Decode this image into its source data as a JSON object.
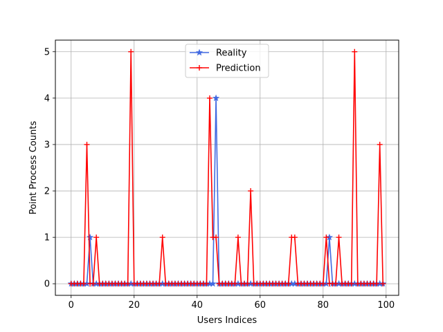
{
  "chart_data": {
    "type": "line",
    "xlabel": "Users Indices",
    "ylabel": "Point Process Counts",
    "xlim": [
      -5,
      104
    ],
    "ylim": [
      -0.25,
      5.25
    ],
    "xticks": [
      0,
      20,
      40,
      60,
      80,
      100
    ],
    "yticks": [
      0,
      1,
      2,
      3,
      4,
      5
    ],
    "grid": true,
    "legend_position": "upper-center",
    "x": [
      0,
      1,
      2,
      3,
      4,
      5,
      6,
      7,
      8,
      9,
      10,
      11,
      12,
      13,
      14,
      15,
      16,
      17,
      18,
      19,
      20,
      21,
      22,
      23,
      24,
      25,
      26,
      27,
      28,
      29,
      30,
      31,
      32,
      33,
      34,
      35,
      36,
      37,
      38,
      39,
      40,
      41,
      42,
      43,
      44,
      45,
      46,
      47,
      48,
      49,
      50,
      51,
      52,
      53,
      54,
      55,
      56,
      57,
      58,
      59,
      60,
      61,
      62,
      63,
      64,
      65,
      66,
      67,
      68,
      69,
      70,
      71,
      72,
      73,
      74,
      75,
      76,
      77,
      78,
      79,
      80,
      81,
      82,
      83,
      84,
      85,
      86,
      87,
      88,
      89,
      90,
      91,
      92,
      93,
      94,
      95,
      96,
      97,
      98,
      99
    ],
    "series": [
      {
        "name": "Reality",
        "color": "#4169e1",
        "marker": "star",
        "values": [
          0,
          0,
          0,
          0,
          0,
          0,
          1,
          0,
          0,
          0,
          0,
          0,
          0,
          0,
          0,
          0,
          0,
          0,
          0,
          0,
          0,
          0,
          0,
          0,
          0,
          0,
          0,
          0,
          0,
          0,
          0,
          0,
          0,
          0,
          0,
          0,
          0,
          0,
          0,
          0,
          0,
          0,
          0,
          0,
          0,
          0,
          4,
          0,
          0,
          0,
          0,
          0,
          0,
          0,
          0,
          0,
          0,
          0,
          0,
          0,
          0,
          0,
          0,
          0,
          0,
          0,
          0,
          0,
          0,
          0,
          0,
          0,
          0,
          0,
          0,
          0,
          0,
          0,
          0,
          0,
          0,
          0,
          1,
          0,
          0,
          0,
          0,
          0,
          0,
          0,
          0,
          0,
          0,
          0,
          0,
          0,
          0,
          0,
          0,
          0
        ]
      },
      {
        "name": "Prediction",
        "color": "#ff0000",
        "marker": "plus",
        "values": [
          0,
          0,
          0,
          0,
          0,
          3,
          0,
          0,
          1,
          0,
          0,
          0,
          0,
          0,
          0,
          0,
          0,
          0,
          0,
          5,
          0,
          0,
          0,
          0,
          0,
          0,
          0,
          0,
          0,
          1,
          0,
          0,
          0,
          0,
          0,
          0,
          0,
          0,
          0,
          0,
          0,
          0,
          0,
          0,
          4,
          1,
          1,
          0,
          0,
          0,
          0,
          0,
          0,
          1,
          0,
          0,
          0,
          2,
          0,
          0,
          0,
          0,
          0,
          0,
          0,
          0,
          0,
          0,
          0,
          0,
          1,
          1,
          0,
          0,
          0,
          0,
          0,
          0,
          0,
          0,
          0,
          1,
          0,
          0,
          0,
          1,
          0,
          0,
          0,
          0,
          5,
          0,
          0,
          0,
          0,
          0,
          0,
          0,
          3,
          0
        ]
      }
    ]
  }
}
